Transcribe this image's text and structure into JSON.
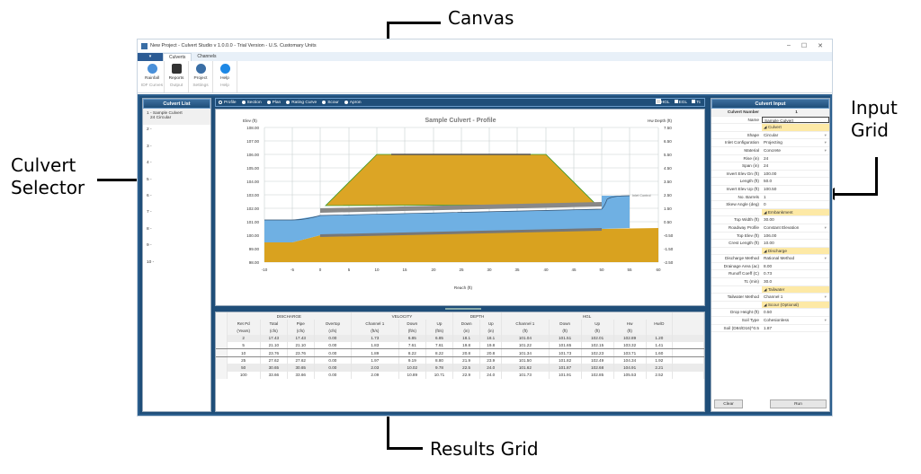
{
  "annotations": {
    "canvas": "Canvas",
    "culvert_selector_1": "Culvert",
    "culvert_selector_2": "Selector",
    "input_grid_1": "Input",
    "input_grid_2": "Grid",
    "results_grid": "Results Grid"
  },
  "window": {
    "title": "New Project - Culvert Studio v 1.0.0.0 - Trial Version - U.S. Customary Units",
    "controls": [
      "–",
      "☐",
      "✕"
    ]
  },
  "tabs": [
    "Culverts",
    "Channels"
  ],
  "ribbon": [
    {
      "label": "Rainfall",
      "sub": "IDF Curves",
      "color": "#4a90d9"
    },
    {
      "label": "Reports",
      "sub": "Output",
      "color": "#333"
    },
    {
      "label": "Project",
      "sub": "Settings",
      "color": "#3a6ea5"
    },
    {
      "label": "Help",
      "sub": "Help",
      "color": "#1e88e5"
    }
  ],
  "culvert_list": {
    "title": "Culvert List",
    "items": [
      "1 - Sample Culvert",
      "2 -",
      "3 -",
      "4 -",
      "5 -",
      "6 -",
      "7 -",
      "8 -",
      "9 -",
      "10 -"
    ],
    "item1_sub": "24 Circular"
  },
  "view_options": [
    "Profile",
    "Section",
    "Plan",
    "Rating Curve",
    "Scour",
    "Apron"
  ],
  "checkboxes": [
    "HGL",
    "EGL",
    "Tc"
  ],
  "chart_data": {
    "type": "area",
    "title": "Sample Culvert - Profile",
    "xlabel": "Reach (ft)",
    "ylabel": "Elev (ft)",
    "y2label": "Hw Depth (ft)",
    "x_ticks": [
      -10,
      -5,
      0,
      5,
      10,
      15,
      20,
      25,
      30,
      35,
      40,
      45,
      50,
      55,
      60
    ],
    "y_ticks": [
      "108.00",
      "107.00",
      "106.00",
      "105.00",
      "104.00",
      "103.00",
      "102.00",
      "101.00",
      "100.00",
      "99.00",
      "98.00"
    ],
    "y2_ticks": [
      "7.50",
      "6.50",
      "5.50",
      "4.50",
      "3.50",
      "2.50",
      "1.50",
      "0.50",
      "-0.50",
      "-1.50",
      "-2.50"
    ],
    "xlim": [
      -10,
      60
    ],
    "ylim": [
      98,
      108
    ],
    "annotation": "Inlet Control",
    "series": [
      {
        "name": "Embankment",
        "points": [
          [
            1,
            102.2
          ],
          [
            10,
            106
          ],
          [
            40,
            106
          ],
          [
            49,
            102.3
          ]
        ]
      },
      {
        "name": "Culvert invert",
        "points": [
          [
            0,
            100
          ],
          [
            50,
            100.5
          ]
        ]
      },
      {
        "name": "Downstream WS",
        "points": [
          [
            -10,
            101.3
          ],
          [
            -3,
            101.3
          ],
          [
            0,
            101.7
          ]
        ]
      },
      {
        "name": "Upstream WS",
        "points": [
          [
            50,
            102
          ],
          [
            55,
            103.2
          ]
        ]
      }
    ]
  },
  "results": {
    "groups": [
      {
        "label": "",
        "span": 1
      },
      {
        "label": "DISCHARGE",
        "span": 4
      },
      {
        "label": "VELOCITY",
        "span": 3
      },
      {
        "label": "DEPTH",
        "span": 2
      },
      {
        "label": "HGL",
        "span": 5
      }
    ],
    "headers": [
      "Ret Pd",
      "Total",
      "Pipe",
      "Overtop",
      "Channel 1",
      "Down",
      "Up",
      "Down",
      "Up",
      "Channel 1",
      "Down",
      "Up",
      "Hw",
      "Hw/D"
    ],
    "units": [
      "(Years)",
      "(cfs)",
      "(cfs)",
      "(cfs)",
      "(ft/s)",
      "(ft/s)",
      "(ft/s)",
      "(in)",
      "(in)",
      "(ft)",
      "(ft)",
      "(ft)",
      "(ft)",
      ""
    ],
    "rows": [
      [
        "2",
        "17.43",
        "17.43",
        "0.00",
        "1.73",
        "6.85",
        "6.85",
        "18.1",
        "18.1",
        "101.04",
        "101.51",
        "102.01",
        "102.89",
        "1.20"
      ],
      [
        "5",
        "21.10",
        "21.10",
        "0.00",
        "1.83",
        "7.61",
        "7.61",
        "19.8",
        "19.8",
        "101.22",
        "101.65",
        "102.15",
        "103.32",
        "1.41"
      ],
      [
        "10",
        "23.76",
        "23.76",
        "0.00",
        "1.89",
        "8.22",
        "8.22",
        "20.8",
        "20.8",
        "101.34",
        "101.73",
        "102.23",
        "103.71",
        "1.60"
      ],
      [
        "25",
        "27.62",
        "27.62",
        "0.00",
        "1.97",
        "9.19",
        "8.80",
        "21.9",
        "23.9",
        "101.50",
        "101.82",
        "102.49",
        "104.34",
        "1.92"
      ],
      [
        "50",
        "30.65",
        "30.65",
        "0.00",
        "2.03",
        "10.02",
        "9.78",
        "22.5",
        "24.0",
        "101.62",
        "101.87",
        "102.68",
        "104.91",
        "2.21"
      ],
      [
        "100",
        "33.66",
        "33.66",
        "0.00",
        "2.09",
        "10.89",
        "10.71",
        "22.9",
        "24.0",
        "101.73",
        "101.91",
        "102.85",
        "105.53",
        "2.52"
      ]
    ]
  },
  "input": {
    "title": "Culvert Input",
    "number_label": "Culvert Number",
    "number": "1",
    "rows": [
      {
        "label": "Name",
        "value": "Sample Culvert",
        "type": "edit"
      },
      {
        "label": "",
        "value": "◢ Culvert",
        "type": "cat"
      },
      {
        "label": "Shape",
        "value": "Circular",
        "type": "sel"
      },
      {
        "label": "Inlet Configuration",
        "value": "Projecting",
        "type": "sel"
      },
      {
        "label": "Material",
        "value": "Concrete",
        "type": "sel"
      },
      {
        "label": "Rise (in)",
        "value": "24",
        "type": "val"
      },
      {
        "label": "Span (in)",
        "value": "24",
        "type": "val"
      },
      {
        "label": "Invert Elev Dn (ft)",
        "value": "100.00",
        "type": "val"
      },
      {
        "label": "Length (ft)",
        "value": "50.0",
        "type": "val"
      },
      {
        "label": "Invert Elev Up (ft)",
        "value": "100.50",
        "type": "val"
      },
      {
        "label": "No. Barrels",
        "value": "1",
        "type": "val"
      },
      {
        "label": "Skew Angle (deg)",
        "value": "0",
        "type": "val"
      },
      {
        "label": "",
        "value": "◢ Embankment",
        "type": "cat"
      },
      {
        "label": "Top Width (ft)",
        "value": "30.00",
        "type": "val"
      },
      {
        "label": "Roadway Profile",
        "value": "Constant Elevation",
        "type": "sel"
      },
      {
        "label": "Top Elev (ft)",
        "value": "106.00",
        "type": "val"
      },
      {
        "label": "Crest Length (ft)",
        "value": "10.00",
        "type": "val"
      },
      {
        "label": "",
        "value": "◢ Discharge",
        "type": "cat"
      },
      {
        "label": "Discharge Method",
        "value": "Rational Method",
        "type": "sel"
      },
      {
        "label": "Drainage Area (ac)",
        "value": "8.00",
        "type": "val"
      },
      {
        "label": "Runoff Coeff (C)",
        "value": "0.73",
        "type": "val"
      },
      {
        "label": "Tc (min)",
        "value": "30.0",
        "type": "val"
      },
      {
        "label": "",
        "value": "◢ Tailwater",
        "type": "cat"
      },
      {
        "label": "Tailwater Method",
        "value": "Channel 1",
        "type": "sel"
      },
      {
        "label": "",
        "value": "◢ Scour (Optional)",
        "type": "cat"
      },
      {
        "label": "Drop Height (ft)",
        "value": "0.50",
        "type": "val"
      },
      {
        "label": "Soil Type",
        "value": "Cohesionless",
        "type": "sel"
      },
      {
        "label": "Soil (D84/D16)^0.5",
        "value": "1.87",
        "type": "val"
      }
    ],
    "clear": "Clear",
    "run": "Run"
  }
}
